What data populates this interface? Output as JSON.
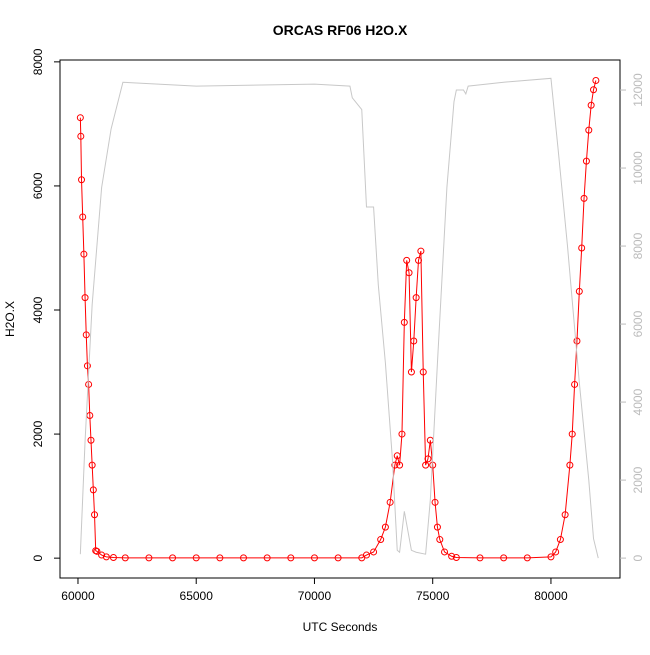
{
  "chart_data": {
    "type": "line",
    "title": "ORCAS RF06 H2O.X",
    "xlabel": "UTC Seconds",
    "ylabel": "H2O.X",
    "xlim": [
      59240,
      82920
    ],
    "ylim": [
      -320,
      8030
    ],
    "y2lim": [
      -510,
      12770
    ],
    "xticks": [
      60000,
      65000,
      70000,
      75000,
      80000
    ],
    "yticks": [
      0,
      2000,
      4000,
      6000,
      8000
    ],
    "y2ticks": [
      0,
      2000,
      4000,
      6000,
      8000,
      10000,
      12000
    ],
    "series": [
      {
        "color": "#ff0000",
        "markers": true,
        "x": [
          60100,
          60120,
          60150,
          60200,
          60250,
          60300,
          60350,
          60400,
          60450,
          60500,
          60550,
          60600,
          60650,
          60700,
          60750,
          60800,
          61000,
          61200,
          61500,
          62000,
          63000,
          64000,
          65000,
          66000,
          67000,
          68000,
          69000,
          70000,
          71000,
          72000,
          72200,
          72500,
          72800,
          73000,
          73200,
          73400,
          73500,
          73600,
          73700,
          73800,
          73900,
          74000,
          74100,
          74200,
          74300,
          74400,
          74500,
          74600,
          74700,
          74800,
          74900,
          75000,
          75100,
          75200,
          75300,
          75500,
          75800,
          76000,
          77000,
          78000,
          79000,
          80000,
          80200,
          80400,
          80600,
          80800,
          80900,
          81000,
          81100,
          81200,
          81300,
          81400,
          81500,
          81600,
          81700,
          81800,
          81900
        ],
        "values": [
          7100,
          6800,
          6100,
          5500,
          4900,
          4200,
          3600,
          3100,
          2800,
          2300,
          1900,
          1500,
          1100,
          700,
          120,
          110,
          50,
          20,
          10,
          5,
          5,
          5,
          5,
          5,
          5,
          5,
          5,
          5,
          5,
          5,
          50,
          100,
          300,
          500,
          900,
          1500,
          1650,
          1500,
          2000,
          3800,
          4800,
          4600,
          3000,
          3500,
          4200,
          4800,
          4950,
          3000,
          1500,
          1600,
          1900,
          1500,
          900,
          500,
          300,
          100,
          30,
          10,
          5,
          5,
          5,
          20,
          100,
          300,
          700,
          1500,
          2000,
          2800,
          3500,
          4300,
          5000,
          5800,
          6400,
          6900,
          7300,
          7550,
          7700
        ]
      },
      {
        "color": "#c8c8c8",
        "axis": "y2",
        "markers": false,
        "x": [
          60100,
          60300,
          60600,
          61000,
          61400,
          61900,
          65000,
          70000,
          71500,
          71600,
          72000,
          72200,
          72500,
          72700,
          73000,
          73300,
          73500,
          73600,
          73800,
          74100,
          74300,
          74700,
          74900,
          75200,
          75600,
          75900,
          76000,
          76300,
          76400,
          76500,
          78000,
          80000,
          80300,
          80700,
          81200,
          81600,
          81800,
          82000
        ],
        "values": [
          100,
          3000,
          6500,
          9500,
          11000,
          12200,
          12100,
          12150,
          12100,
          11800,
          11500,
          9000,
          9000,
          7000,
          5000,
          2500,
          200,
          150,
          1200,
          200,
          150,
          100,
          1500,
          5000,
          9500,
          11700,
          12000,
          12000,
          11900,
          12100,
          12200,
          12300,
          10500,
          8000,
          4500,
          2000,
          500,
          0
        ]
      }
    ]
  }
}
